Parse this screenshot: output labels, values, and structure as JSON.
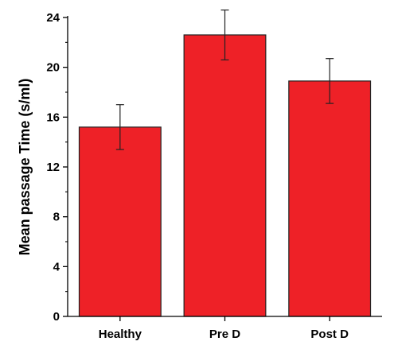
{
  "chart_data": {
    "type": "bar",
    "title": "",
    "xlabel": "",
    "ylabel": "Mean passage Time (s/ml)",
    "categories": [
      "Healthy",
      "Pre D",
      "Post D"
    ],
    "values": [
      15.2,
      22.6,
      18.9
    ],
    "errors": [
      1.8,
      2.0,
      1.8
    ],
    "ylim": [
      0,
      24
    ],
    "yticks": [
      0,
      4,
      8,
      12,
      16,
      20,
      24
    ],
    "grid": false,
    "bar_color": "#ee2127",
    "bar_edge_color": "#222222"
  }
}
